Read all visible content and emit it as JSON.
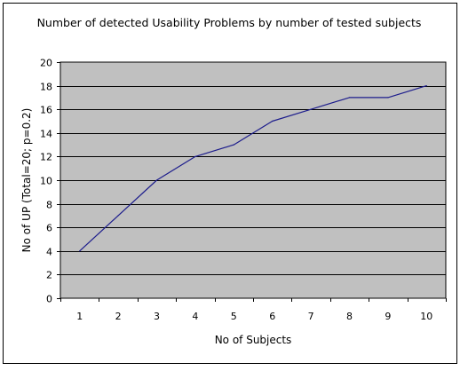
{
  "chart_data": {
    "type": "line",
    "title": "Number of detected Usability Problems by number of tested subjects",
    "xlabel": "No of Subjects",
    "ylabel": "No of UP (Total=20; p=0.2)",
    "categories": [
      "1",
      "2",
      "3",
      "4",
      "5",
      "6",
      "7",
      "8",
      "9",
      "10"
    ],
    "series": [
      {
        "values": [
          4,
          7,
          10,
          12,
          13,
          15,
          16,
          17,
          17,
          18
        ]
      }
    ],
    "ylim": [
      0,
      20
    ],
    "yticks": [
      0,
      2,
      4,
      6,
      8,
      10,
      12,
      14,
      16,
      18,
      20
    ],
    "grid": "horizontal",
    "legend": "none",
    "colors": {
      "plot_background": "#c0c0c0",
      "line": "#1c1c8c",
      "gridline": "#000000",
      "frame": "#000000"
    }
  }
}
